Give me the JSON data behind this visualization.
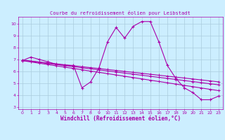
{
  "title": "Courbe du refroidissement éolien pour Leibstadt",
  "xlabel": "Windchill (Refroidissement éolien,°C)",
  "bg_color": "#cceeff",
  "grid_color": "#aaccdd",
  "line_color": "#aa00aa",
  "xlim": [
    -0.5,
    23.5
  ],
  "ylim": [
    2.8,
    10.6
  ],
  "xticks": [
    0,
    1,
    2,
    3,
    4,
    5,
    6,
    7,
    8,
    9,
    10,
    11,
    12,
    13,
    14,
    15,
    16,
    17,
    18,
    19,
    20,
    21,
    22,
    23
  ],
  "yticks": [
    3,
    4,
    5,
    6,
    7,
    8,
    9,
    10
  ],
  "main_line": [
    6.9,
    7.2,
    7.0,
    6.8,
    6.6,
    6.5,
    6.5,
    4.6,
    5.1,
    6.3,
    8.5,
    9.7,
    8.8,
    9.8,
    10.2,
    10.2,
    8.5,
    6.5,
    5.4,
    4.6,
    4.2,
    3.6,
    3.6,
    3.9
  ],
  "trend_line1": [
    6.95,
    6.87,
    6.79,
    6.71,
    6.63,
    6.55,
    6.47,
    6.39,
    6.31,
    6.23,
    6.15,
    6.07,
    5.99,
    5.91,
    5.83,
    5.75,
    5.67,
    5.59,
    5.51,
    5.43,
    5.35,
    5.27,
    5.19,
    5.11
  ],
  "trend_line2": [
    6.93,
    6.84,
    6.75,
    6.66,
    6.57,
    6.48,
    6.39,
    6.3,
    6.21,
    6.12,
    6.03,
    5.94,
    5.85,
    5.76,
    5.67,
    5.58,
    5.49,
    5.4,
    5.31,
    5.22,
    5.13,
    5.04,
    4.95,
    4.86
  ],
  "trend_line3": [
    6.9,
    6.79,
    6.68,
    6.57,
    6.46,
    6.35,
    6.24,
    6.13,
    6.02,
    5.91,
    5.8,
    5.69,
    5.58,
    5.47,
    5.36,
    5.25,
    5.14,
    5.03,
    4.92,
    4.81,
    4.7,
    4.59,
    4.48,
    4.37
  ],
  "linewidth": 0.8,
  "tick_fontsize": 4.5,
  "label_fontsize": 5.5,
  "title_fontsize": 5.0
}
